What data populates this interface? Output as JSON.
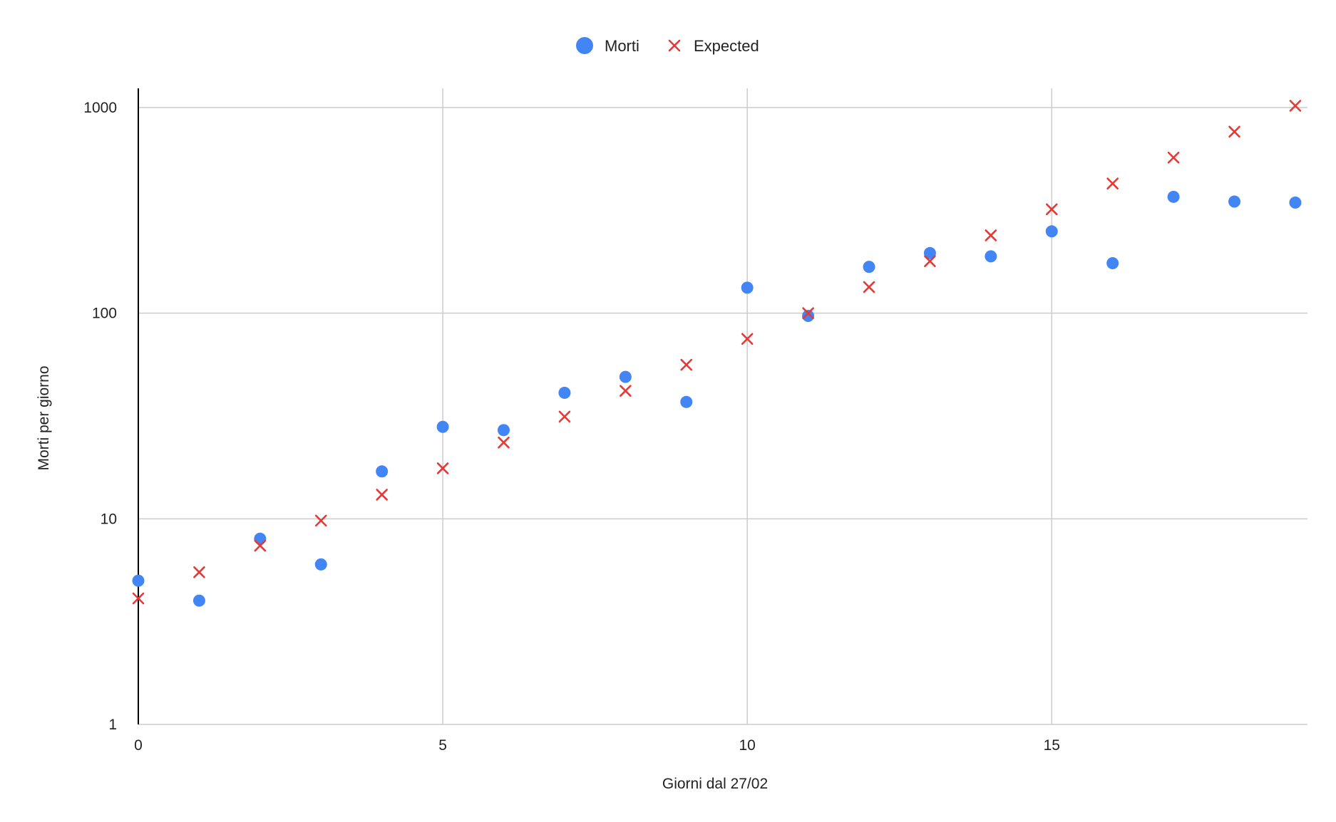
{
  "chart_data": {
    "type": "scatter",
    "title": "",
    "xlabel": "Giorni dal 27/02",
    "ylabel": "Morti per giorno",
    "xlim": [
      0,
      19.2
    ],
    "ylim": [
      1,
      1000
    ],
    "y_scale": "log",
    "grid": true,
    "legend_position": "top-center",
    "x_ticks": [
      "0",
      "5",
      "10",
      "15"
    ],
    "y_ticks": [
      "1",
      "10",
      "100",
      "1000"
    ],
    "colors": {
      "morti": "#4285f4",
      "expected": "#e53935",
      "grid": "#cccccc",
      "axis": "#000000"
    },
    "series": [
      {
        "name": "Morti",
        "marker": "circle",
        "x": [
          0,
          1,
          2,
          3,
          4,
          5,
          6,
          7,
          8,
          9,
          10,
          11,
          12,
          13,
          14,
          15,
          16,
          17,
          18,
          19
        ],
        "y": [
          5,
          4,
          8,
          6,
          17,
          28,
          27,
          41,
          49,
          37,
          133,
          97,
          168,
          196,
          189,
          250,
          175,
          368,
          349,
          345
        ]
      },
      {
        "name": "Expected",
        "marker": "x",
        "x": [
          0,
          1,
          2,
          3,
          4,
          5,
          6,
          7,
          8,
          9,
          10,
          11,
          12,
          13,
          14,
          15,
          16,
          17,
          18,
          19
        ],
        "y": [
          4.1,
          5.5,
          7.4,
          9.8,
          13.1,
          17.6,
          23.5,
          31.4,
          41.9,
          56.1,
          75,
          100,
          134,
          179,
          239,
          320,
          427,
          571,
          763,
          1020
        ]
      }
    ]
  }
}
